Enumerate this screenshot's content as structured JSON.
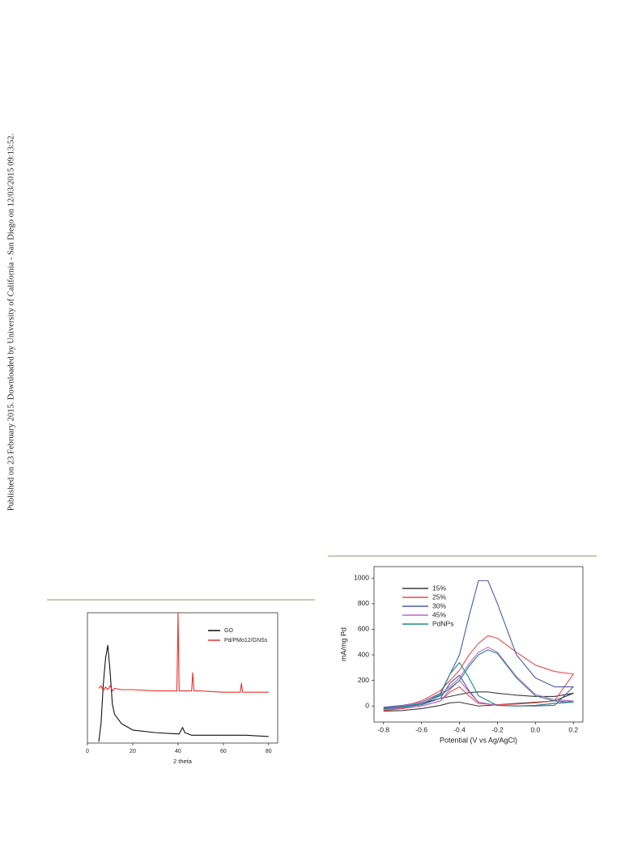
{
  "side_note": "Published on 23 February 2015. Downloaded by University of California - San Diego on 12/03/2015 09:13:52.",
  "chart_data": [
    {
      "type": "line",
      "xlabel": "2 theta",
      "x": [
        5,
        6,
        7,
        8,
        9,
        10,
        11,
        12,
        15,
        20,
        30,
        39.5,
        40,
        40.5,
        42,
        43,
        46,
        46.5,
        47,
        50,
        60,
        67.5,
        68,
        68.5,
        70,
        80
      ],
      "series": [
        {
          "name": "GO",
          "color": "#111111",
          "values": [
            1,
            15,
            45,
            65,
            75,
            55,
            30,
            22,
            15,
            10,
            8,
            7,
            7,
            7,
            12,
            8,
            6,
            6,
            6,
            6,
            6,
            6,
            6,
            6,
            6,
            5
          ]
        },
        {
          "name": "Pd/PMo12/GNSs",
          "color": "#e8302a",
          "values": [
            42,
            44,
            40,
            43,
            41,
            44,
            40,
            42,
            41,
            41,
            40,
            40,
            100,
            40,
            40,
            40,
            40,
            54,
            40,
            40,
            39,
            39,
            46,
            39,
            39,
            39
          ]
        }
      ],
      "xlim": [
        0,
        84
      ],
      "ylim": [
        0,
        100
      ],
      "xticks": [
        0,
        20,
        40,
        60,
        80
      ],
      "legend": "upper right"
    },
    {
      "type": "line",
      "xlabel": "Potential (V vs Ag/AgCl)",
      "ylabel": "mA/mg Pd",
      "x": [
        -0.8,
        -0.7,
        -0.6,
        -0.5,
        -0.4,
        -0.35,
        -0.3,
        -0.25,
        -0.2,
        -0.1,
        0,
        0.1,
        0.2,
        0.1,
        0,
        -0.1,
        -0.2,
        -0.3,
        -0.35,
        -0.4,
        -0.45,
        -0.5,
        -0.6,
        -0.7,
        -0.8
      ],
      "series": [
        {
          "name": "15%",
          "color": "#3a3a3a",
          "values": [
            -30,
            -10,
            20,
            60,
            90,
            105,
            110,
            110,
            100,
            85,
            75,
            75,
            100,
            40,
            30,
            20,
            10,
            0,
            15,
            30,
            25,
            5,
            -20,
            -35,
            -40
          ]
        },
        {
          "name": "25%",
          "color": "#ee4a48",
          "values": [
            -30,
            -5,
            40,
            120,
            280,
            400,
            490,
            550,
            530,
            420,
            320,
            270,
            250,
            40,
            25,
            15,
            10,
            20,
            80,
            150,
            110,
            40,
            0,
            -20,
            -35
          ]
        },
        {
          "name": "30%",
          "color": "#4a5aa8",
          "values": [
            -10,
            5,
            30,
            100,
            400,
            700,
            980,
            980,
            800,
            400,
            220,
            150,
            150,
            5,
            0,
            0,
            5,
            30,
            120,
            240,
            180,
            60,
            10,
            -5,
            -15
          ]
        },
        {
          "name": "45%",
          "color": "#c266c8",
          "values": [
            -20,
            0,
            30,
            90,
            220,
            330,
            420,
            460,
            420,
            230,
            90,
            50,
            40,
            20,
            5,
            0,
            5,
            30,
            110,
            200,
            130,
            40,
            0,
            -15,
            -25
          ]
        },
        {
          "name": "PdNPs",
          "color": "#1f8a84",
          "values": [
            -20,
            -5,
            20,
            80,
            200,
            310,
            400,
            440,
            410,
            220,
            80,
            40,
            30,
            20,
            5,
            0,
            5,
            80,
            220,
            340,
            250,
            90,
            10,
            -10,
            -20
          ]
        }
      ],
      "xlim": [
        -0.85,
        0.25
      ],
      "ylim": [
        -125,
        1090
      ],
      "xticks": [
        {
          "value": -0.8,
          "label": "-0.8"
        },
        {
          "value": -0.6,
          "label": "-0.6"
        },
        {
          "value": -0.4,
          "label": "-0.4"
        },
        {
          "value": -0.2,
          "label": "-0.2"
        },
        {
          "value": 0,
          "label": "0.0"
        },
        0.2
      ],
      "yticks": [
        0,
        200,
        400,
        600,
        800,
        1000
      ],
      "legend": "upper left"
    }
  ]
}
